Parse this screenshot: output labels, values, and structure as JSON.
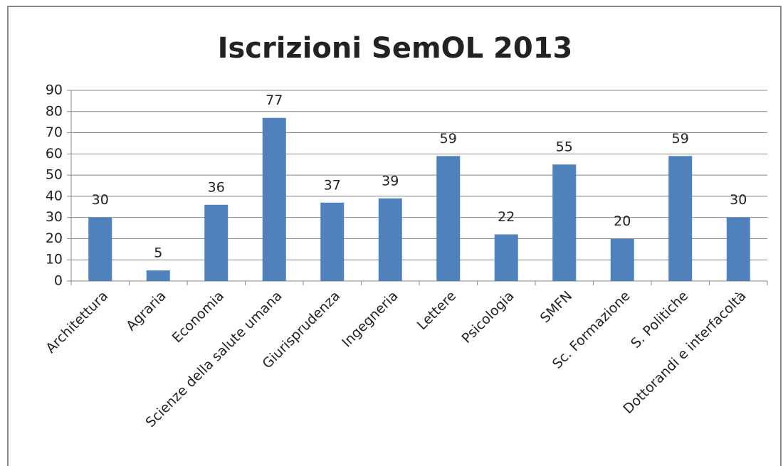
{
  "chart_data": {
    "type": "bar",
    "title": "Iscrizioni SemOL 2013",
    "categories": [
      "Architettura",
      "Agraria",
      "Economia",
      "Scienze della salute umana",
      "Giurisprudenza",
      "Ingegneria",
      "Lettere",
      "Psicologia",
      "SMFN",
      "Sc. Formazione",
      "S. Politiche",
      "Dottorandi e interfacoltà"
    ],
    "values": [
      30,
      5,
      36,
      77,
      37,
      39,
      59,
      22,
      55,
      20,
      59,
      30
    ],
    "color": "#4f81bd",
    "ylim": [
      0,
      90
    ],
    "yticks": [
      0,
      10,
      20,
      30,
      40,
      50,
      60,
      70,
      80,
      90
    ],
    "grid": true
  }
}
